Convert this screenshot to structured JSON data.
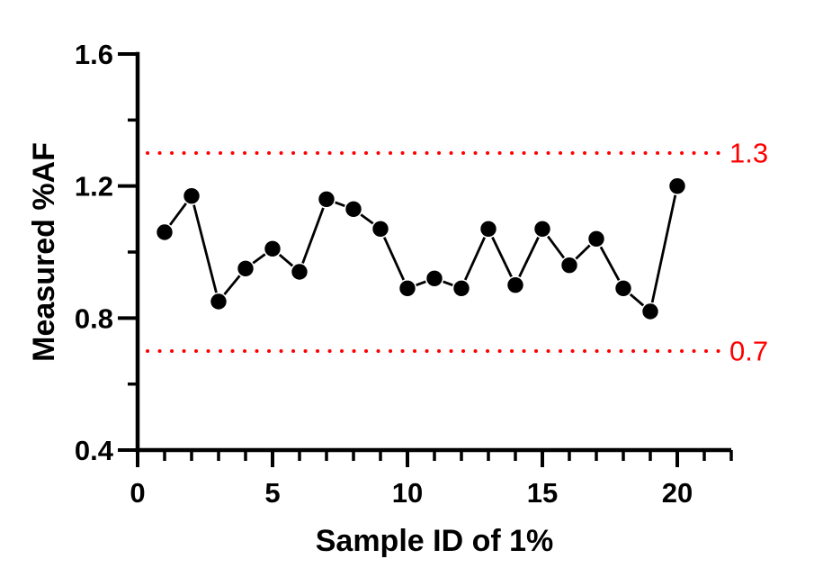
{
  "chart_data": {
    "type": "line",
    "title": "",
    "xlabel": "Sample ID of 1%",
    "ylabel": "Measured %AF",
    "series_name": "Measured %AF",
    "marker": "circle",
    "grid": false,
    "legend": null,
    "x": [
      1,
      2,
      3,
      4,
      5,
      6,
      7,
      8,
      9,
      10,
      11,
      12,
      13,
      14,
      15,
      16,
      17,
      18,
      19,
      20
    ],
    "y": [
      1.06,
      1.17,
      0.85,
      0.95,
      1.01,
      0.94,
      1.16,
      1.13,
      1.07,
      0.89,
      0.92,
      0.89,
      1.07,
      0.9,
      1.07,
      0.96,
      1.04,
      0.89,
      0.82,
      1.2
    ],
    "xlim": [
      0,
      22
    ],
    "ylim": [
      0.4,
      1.6
    ],
    "x_major_ticks": [
      0,
      5,
      10,
      15,
      20
    ],
    "x_tick_labels": [
      "0",
      "5",
      "10",
      "15",
      "20"
    ],
    "x_minor_ticks": [
      1,
      2,
      3,
      4,
      6,
      7,
      8,
      9,
      11,
      12,
      13,
      14,
      16,
      17,
      18,
      19,
      21,
      22
    ],
    "y_major_ticks": [
      0.4,
      0.8,
      1.2,
      1.6
    ],
    "y_tick_labels": [
      "0.4",
      "0.8",
      "1.2",
      "1.6"
    ],
    "y_minor_ticks": [
      0.6,
      1.0,
      1.4
    ],
    "reference_lines": [
      {
        "value": 1.3,
        "label": "1.3",
        "style": "dotted"
      },
      {
        "value": 0.7,
        "label": "0.7",
        "style": "dotted"
      }
    ]
  },
  "colors": {
    "background": "#FFFFFF",
    "axis": "#000000",
    "text": "#000000",
    "series": "#000000",
    "marker_fill": "#000000",
    "marker_rim": "#FFFFFF",
    "reference": "#FF0000"
  }
}
